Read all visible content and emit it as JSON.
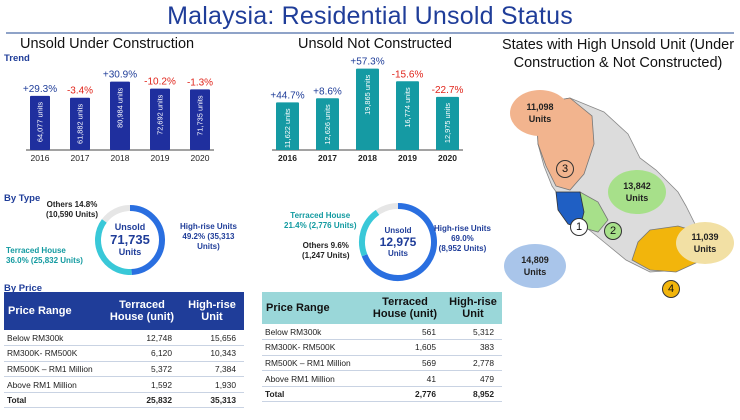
{
  "title": "Malaysia: Residential Unsold Status",
  "colors": {
    "navy": "#1f2f9e",
    "teal": "#159aa3",
    "red": "#e0251b",
    "accent": "#1f3d99"
  },
  "section_left": {
    "heading": "Unsold Under Construction",
    "trend_label": "Trend",
    "type_label": "By Type",
    "price_label": "By Price"
  },
  "section_mid": {
    "heading": "Unsold Not Constructed"
  },
  "section_right": {
    "heading": "States with High Unsold Unit (Under Construction & Not Constructed)"
  },
  "chart_data": [
    {
      "type": "bar",
      "title": "Unsold Under Construction",
      "categories": [
        "2016",
        "2017",
        "2018",
        "2019",
        "2020"
      ],
      "values": [
        64077,
        61882,
        80984,
        72692,
        71735
      ],
      "value_labels": [
        "64,077 units",
        "61,882 units",
        "80,984 units",
        "72,692 units",
        "71,735 units"
      ],
      "changes": [
        "+29.3%",
        "-3.4%",
        "+30.9%",
        "-10.2%",
        "-1.3%"
      ],
      "ylim": [
        0,
        90000
      ]
    },
    {
      "type": "bar",
      "title": "Unsold Not Constructed",
      "categories": [
        "2016",
        "2017",
        "2018",
        "2019",
        "2020"
      ],
      "values": [
        11622,
        12626,
        19865,
        16774,
        12975
      ],
      "value_labels": [
        "11,622 units",
        "12,626 units",
        "19,865 units",
        "16,774 units",
        "12,975 units"
      ],
      "changes": [
        "+44.7%",
        "+8.6%",
        "+57.3%",
        "-15.6%",
        "-22.7%"
      ],
      "ylim": [
        0,
        21000
      ]
    },
    {
      "type": "pie",
      "title": "Unsold Under Construction By Type",
      "center_label": "Unsold",
      "center_value": "71,735",
      "center_unit": "Units",
      "slices": [
        {
          "name": "High-rise Units",
          "percent": 49.2,
          "label": "High-rise Units 49.2% (35,313 Units)"
        },
        {
          "name": "Terraced House",
          "percent": 36.0,
          "label": "Terraced House 36.0% (25,832 Units)"
        },
        {
          "name": "Others",
          "percent": 14.8,
          "label": "Others 14.8% (10,590 Units)"
        }
      ]
    },
    {
      "type": "pie",
      "title": "Unsold Not Constructed By Type",
      "center_label": "Unsold",
      "center_value": "12,975",
      "center_unit": "Units",
      "slices": [
        {
          "name": "High-rise Units",
          "percent": 69.0,
          "label": "High-rise Units 69.0% (8,952 Units)"
        },
        {
          "name": "Terraced House",
          "percent": 21.4,
          "label": "Terraced House 21.4% (2,776 Units)"
        },
        {
          "name": "Others",
          "percent": 9.6,
          "label": "Others 9.6% (1,247 Units)"
        }
      ]
    }
  ],
  "donut1_text": {
    "others_l1": "Others 14.8%",
    "others_l2": "(10,590 Units)",
    "terr_l1": "Terraced House",
    "terr_l2": "36.0% (25,832 Units)",
    "high_l1": "High-rise Units",
    "high_l2": "49.2% (35,313",
    "high_l3": "Units)",
    "center_label": "Unsold",
    "center_value": "71,735",
    "center_unit": "Units"
  },
  "donut2_text": {
    "terr_l1": "Terraced House",
    "terr_l2": "21.4% (2,776 Units)",
    "others_l1": "Others 9.6%",
    "others_l2": "(1,247 Units)",
    "high_l1": "High-rise Units",
    "high_l2": "69.0%",
    "high_l3": "(8,952 Units)",
    "center_label": "Unsold",
    "center_value": "12,975",
    "center_unit": "Units"
  },
  "table1": {
    "headers": [
      "Price Range",
      "Terraced House (unit)",
      "High-rise Unit"
    ],
    "rows": [
      [
        "Below RM300k",
        "12,748",
        "15,656"
      ],
      [
        "RM300K- RM500K",
        "6,120",
        "10,343"
      ],
      [
        "RM500K – RM1 Million",
        "5,372",
        "7,384"
      ],
      [
        "Above RM1 Million",
        "1,592",
        "1,930"
      ]
    ],
    "total": [
      "Total",
      "25,832",
      "35,313"
    ]
  },
  "table2": {
    "headers": [
      "Price Range",
      "Terraced House (unit)",
      "High-rise Unit"
    ],
    "rows": [
      [
        "Below RM300k",
        "561",
        "5,312"
      ],
      [
        "RM300K- RM500K",
        "1,605",
        "383"
      ],
      [
        "RM500K – RM1 Million",
        "569",
        "2,778"
      ],
      [
        "Above RM1 Million",
        "41",
        "479"
      ]
    ],
    "total": [
      "Total",
      "2,776",
      "8,952"
    ]
  },
  "map": {
    "callouts": [
      {
        "value": "11,098",
        "unit": "Units"
      },
      {
        "value": "13,842",
        "unit": "Units"
      },
      {
        "value": "14,809",
        "unit": "Units"
      },
      {
        "value": "11,039",
        "unit": "Units"
      }
    ],
    "markers": [
      "1",
      "2",
      "3",
      "4"
    ]
  }
}
